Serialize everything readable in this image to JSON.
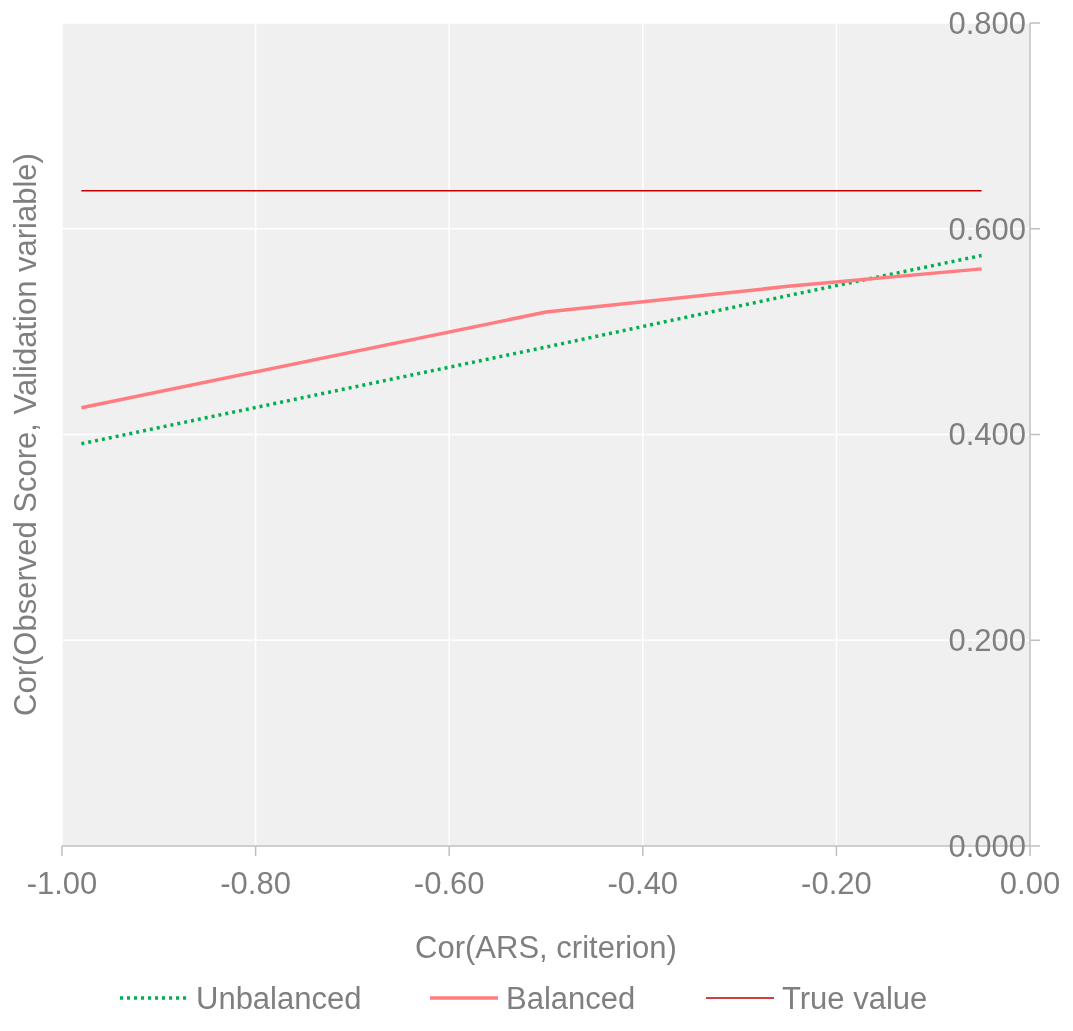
{
  "chart_data": {
    "type": "line",
    "xlabel": "Cor(ARS, criterion)",
    "ylabel": "Cor(Observed Score, Validation variable)",
    "xlim": [
      -1,
      0
    ],
    "xticks": [
      {
        "value": -1,
        "label": "-1.00"
      },
      {
        "value": -0.8,
        "label": "-0.80"
      },
      {
        "value": -0.6,
        "label": "-0.60"
      },
      {
        "value": -0.4,
        "label": "-0.40"
      },
      {
        "value": -0.2,
        "label": "-0.20"
      },
      {
        "value": 0,
        "label": "0.00"
      }
    ],
    "ylim": [
      0,
      0.8
    ],
    "yticks": [
      {
        "value": 0,
        "label": "0.000"
      },
      {
        "value": 0.2,
        "label": "0.200"
      },
      {
        "value": 0.4,
        "label": "0.400"
      },
      {
        "value": 0.6,
        "label": "0.600"
      },
      {
        "value": 0.8,
        "label": "0.800"
      }
    ],
    "grid": true,
    "legend": "bottom",
    "series": [
      {
        "name": "Unbalanced",
        "color": "#00b050",
        "line_style": "dotted",
        "x": [
          -0.98,
          -0.5,
          -0.25,
          -0.05
        ],
        "values": [
          0.391,
          0.485,
          0.535,
          0.574
        ]
      },
      {
        "name": "Balanced",
        "color": "#ff7c80",
        "line_style": "solid",
        "x": [
          -0.98,
          -0.5,
          -0.25,
          -0.05
        ],
        "values": [
          0.426,
          0.519,
          0.544,
          0.561
        ]
      },
      {
        "name": "True value",
        "color": "#c00000",
        "line_style": "solid",
        "x": [
          -0.98,
          -0.05
        ],
        "values": [
          0.637,
          0.637
        ]
      }
    ]
  }
}
